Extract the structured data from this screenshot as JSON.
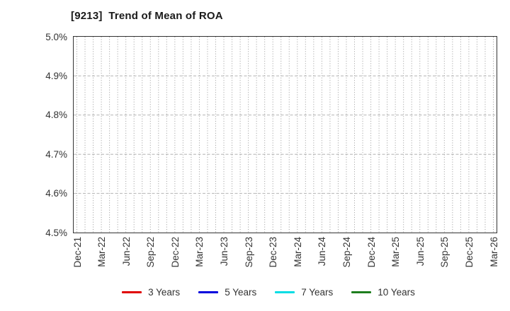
{
  "chart_data": {
    "type": "line",
    "title": "[9213]  Trend of Mean of ROA",
    "categories": [
      "Dec-21",
      "Mar-22",
      "Jun-22",
      "Sep-22",
      "Dec-22",
      "Mar-23",
      "Jun-23",
      "Sep-23",
      "Dec-23",
      "Mar-24",
      "Jun-24",
      "Sep-24",
      "Dec-24",
      "Mar-25",
      "Jun-25",
      "Sep-25",
      "Dec-25",
      "Mar-26"
    ],
    "minor_x_divisions_per_interval": 3,
    "y_tick_labels": [
      "5.0%",
      "4.9%",
      "4.8%",
      "4.7%",
      "4.6%",
      "4.5%"
    ],
    "ylim": [
      4.5,
      5.0
    ],
    "y_tick_step": 0.1,
    "xlabel": "",
    "ylabel": "",
    "grid": true,
    "legend_position": "bottom",
    "series": [
      {
        "name": "3 Years",
        "color": "#e00000",
        "values": []
      },
      {
        "name": "5 Years",
        "color": "#0000dd",
        "values": []
      },
      {
        "name": "7 Years",
        "color": "#00dde4",
        "values": []
      },
      {
        "name": "10 Years",
        "color": "#1e7e1e",
        "values": []
      }
    ],
    "plot_style": {
      "background": "#ffffff",
      "border_color": "#333333",
      "grid_vertical_color": "#999999",
      "grid_horizontal_color": "#b3b3b3",
      "tick_label_color": "#333333",
      "title_color": "#1a1a1a"
    }
  }
}
